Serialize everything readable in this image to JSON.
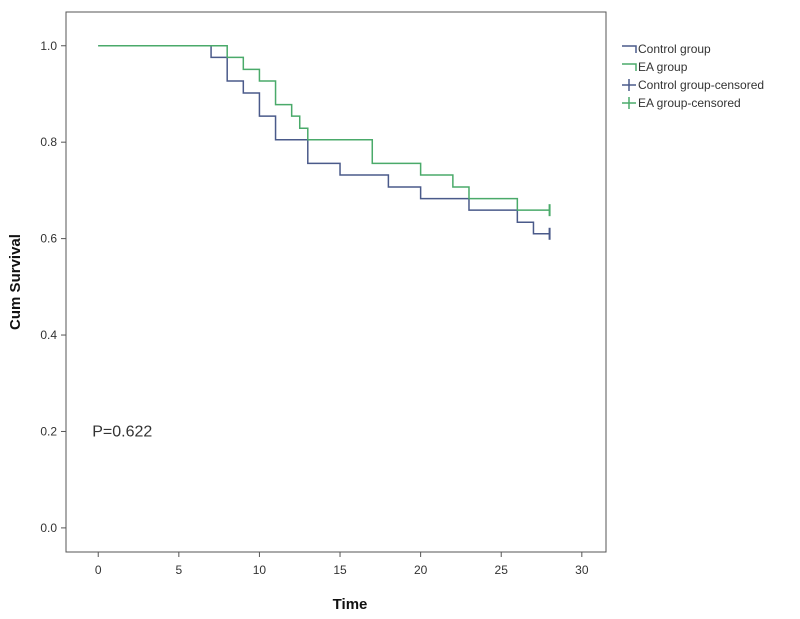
{
  "chart_data": {
    "type": "line",
    "subtype": "kaplan-meier-step",
    "xlabel": "Time",
    "ylabel": "Cum Survival",
    "xlim": [
      -2,
      31.5
    ],
    "ylim": [
      -0.05,
      1.07
    ],
    "xticks": [
      0,
      5,
      10,
      15,
      20,
      25,
      30
    ],
    "yticks": [
      0.0,
      0.2,
      0.4,
      0.6,
      0.8,
      1.0
    ],
    "ytick_labels": [
      "0.0",
      "0.2",
      "0.4",
      "0.6",
      "0.8",
      "1.0"
    ],
    "grid": false,
    "legend_position": "top-right",
    "annotation": "P=0.622",
    "series": [
      {
        "name": "Control group",
        "color": "#4a5a8a",
        "steps": [
          [
            0,
            1.0
          ],
          [
            7,
            0.976
          ],
          [
            8,
            0.927
          ],
          [
            9,
            0.902
          ],
          [
            10,
            0.854
          ],
          [
            11,
            0.805
          ],
          [
            13,
            0.756
          ],
          [
            15,
            0.732
          ],
          [
            18,
            0.707
          ],
          [
            20,
            0.683
          ],
          [
            23,
            0.659
          ],
          [
            26,
            0.634
          ],
          [
            27,
            0.61
          ],
          [
            28,
            0.61
          ]
        ],
        "censored_name": "Control group-censored",
        "censored": [
          [
            28,
            0.61
          ]
        ]
      },
      {
        "name": "EA group",
        "color": "#4aaa6a",
        "steps": [
          [
            0,
            1.0
          ],
          [
            8,
            0.976
          ],
          [
            9,
            0.951
          ],
          [
            10,
            0.927
          ],
          [
            11,
            0.878
          ],
          [
            12,
            0.854
          ],
          [
            12.5,
            0.829
          ],
          [
            13,
            0.805
          ],
          [
            17,
            0.756
          ],
          [
            20,
            0.732
          ],
          [
            22,
            0.707
          ],
          [
            23,
            0.683
          ],
          [
            26,
            0.659
          ],
          [
            28,
            0.659
          ]
        ],
        "censored_name": "EA group-censored",
        "censored": [
          [
            28,
            0.659
          ]
        ]
      }
    ]
  }
}
